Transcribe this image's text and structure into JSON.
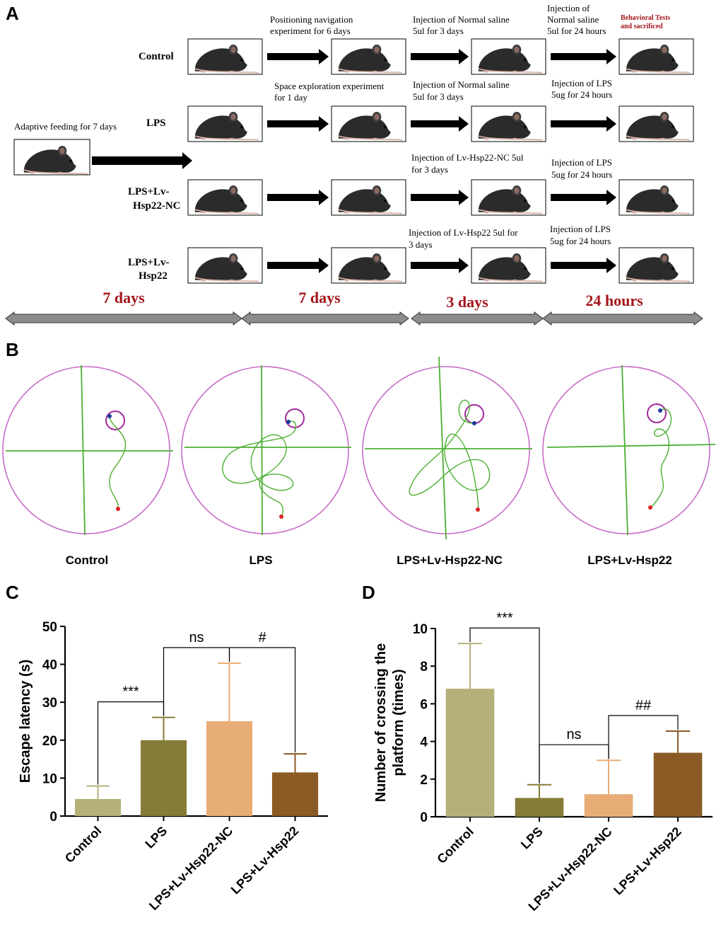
{
  "panel_labels": [
    "A",
    "B",
    "C",
    "D"
  ],
  "timeline": {
    "groups": [
      {
        "name": "Control"
      },
      {
        "name": "LPS"
      },
      {
        "name_line1": "LPS+Lv-",
        "name_line2": "Hsp22-NC"
      },
      {
        "name_line1": "LPS+Lv-",
        "name_line2": "Hsp22"
      }
    ],
    "adaptive_feeding": "Adaptive feeding for 7 days",
    "step2": {
      "positioning": [
        "Positioning navigation",
        "experiment for 6 days"
      ],
      "space": [
        "Space exploration experiment",
        "for 1 day"
      ]
    },
    "step3": {
      "control": [
        "Injection of Normal saline",
        "5ul for 3 days"
      ],
      "lps": [
        "Injection of Normal saline",
        "5ul for 3 days"
      ],
      "nc": [
        "Injection of Lv-Hsp22-NC 5ul",
        "for 3 days"
      ],
      "hsp22": [
        "Injection of Lv-Hsp22 5ul for",
        "3 days"
      ]
    },
    "step4": {
      "control": [
        "Injection of",
        "Normal saline",
        "5ul for 24 hours"
      ],
      "lps": [
        "Injection of LPS",
        "5ug for 24 hours"
      ],
      "nc": [
        "Injection of LPS",
        "5ug for 24 hours"
      ],
      "hsp22": [
        "Injection of LPS",
        "5ug for 24 hours"
      ]
    },
    "final": [
      "Behavioral Tests",
      "and sacrificed"
    ],
    "durations": [
      "7 days",
      "7 days",
      "3 days",
      "24 hours"
    ]
  },
  "tracks": {
    "labels": [
      "Control",
      "LPS",
      "LPS+Lv-Hsp22-NC",
      "LPS+Lv-Hsp22"
    ]
  },
  "chart_data": [
    {
      "type": "bar",
      "panel": "C",
      "categories": [
        "Control",
        "LPS",
        "LPS+Lv-Hsp22-NC",
        "LPS+Lv-Hsp22"
      ],
      "values": [
        4.5,
        20,
        25,
        11.5
      ],
      "errors": [
        3.4,
        6,
        15.3,
        4.9
      ],
      "colors": [
        "#b5b07a",
        "#857c38",
        "#e8ad76",
        "#8b5a25"
      ],
      "ylabel": "Escape latency (s)",
      "ylim": [
        0,
        50
      ],
      "yticks": [
        0,
        10,
        20,
        30,
        40,
        50
      ],
      "significance": [
        {
          "from": 0,
          "to": 1,
          "label": "***"
        },
        {
          "from": 1,
          "to": 2,
          "label": "ns"
        },
        {
          "from": 2,
          "to": 3,
          "label": "#"
        }
      ]
    },
    {
      "type": "bar",
      "panel": "D",
      "categories": [
        "Control",
        "LPS",
        "LPS+Lv-Hsp22-NC",
        "LPS+Lv-Hsp22"
      ],
      "values": [
        6.8,
        1.0,
        1.2,
        3.4
      ],
      "errors": [
        2.4,
        0.7,
        1.8,
        1.15
      ],
      "colors": [
        "#b5b07a",
        "#857c38",
        "#e8ad76",
        "#8b5a25"
      ],
      "ylabel_line1": "Number of crossing the",
      "ylabel_line2": "platform (times)",
      "ylim": [
        0,
        10
      ],
      "yticks": [
        0,
        2,
        4,
        6,
        8,
        10
      ],
      "significance": [
        {
          "from": 0,
          "to": 1,
          "label": "***"
        },
        {
          "from": 1,
          "to": 2,
          "label": "ns"
        },
        {
          "from": 2,
          "to": 3,
          "label": "##"
        }
      ]
    }
  ]
}
